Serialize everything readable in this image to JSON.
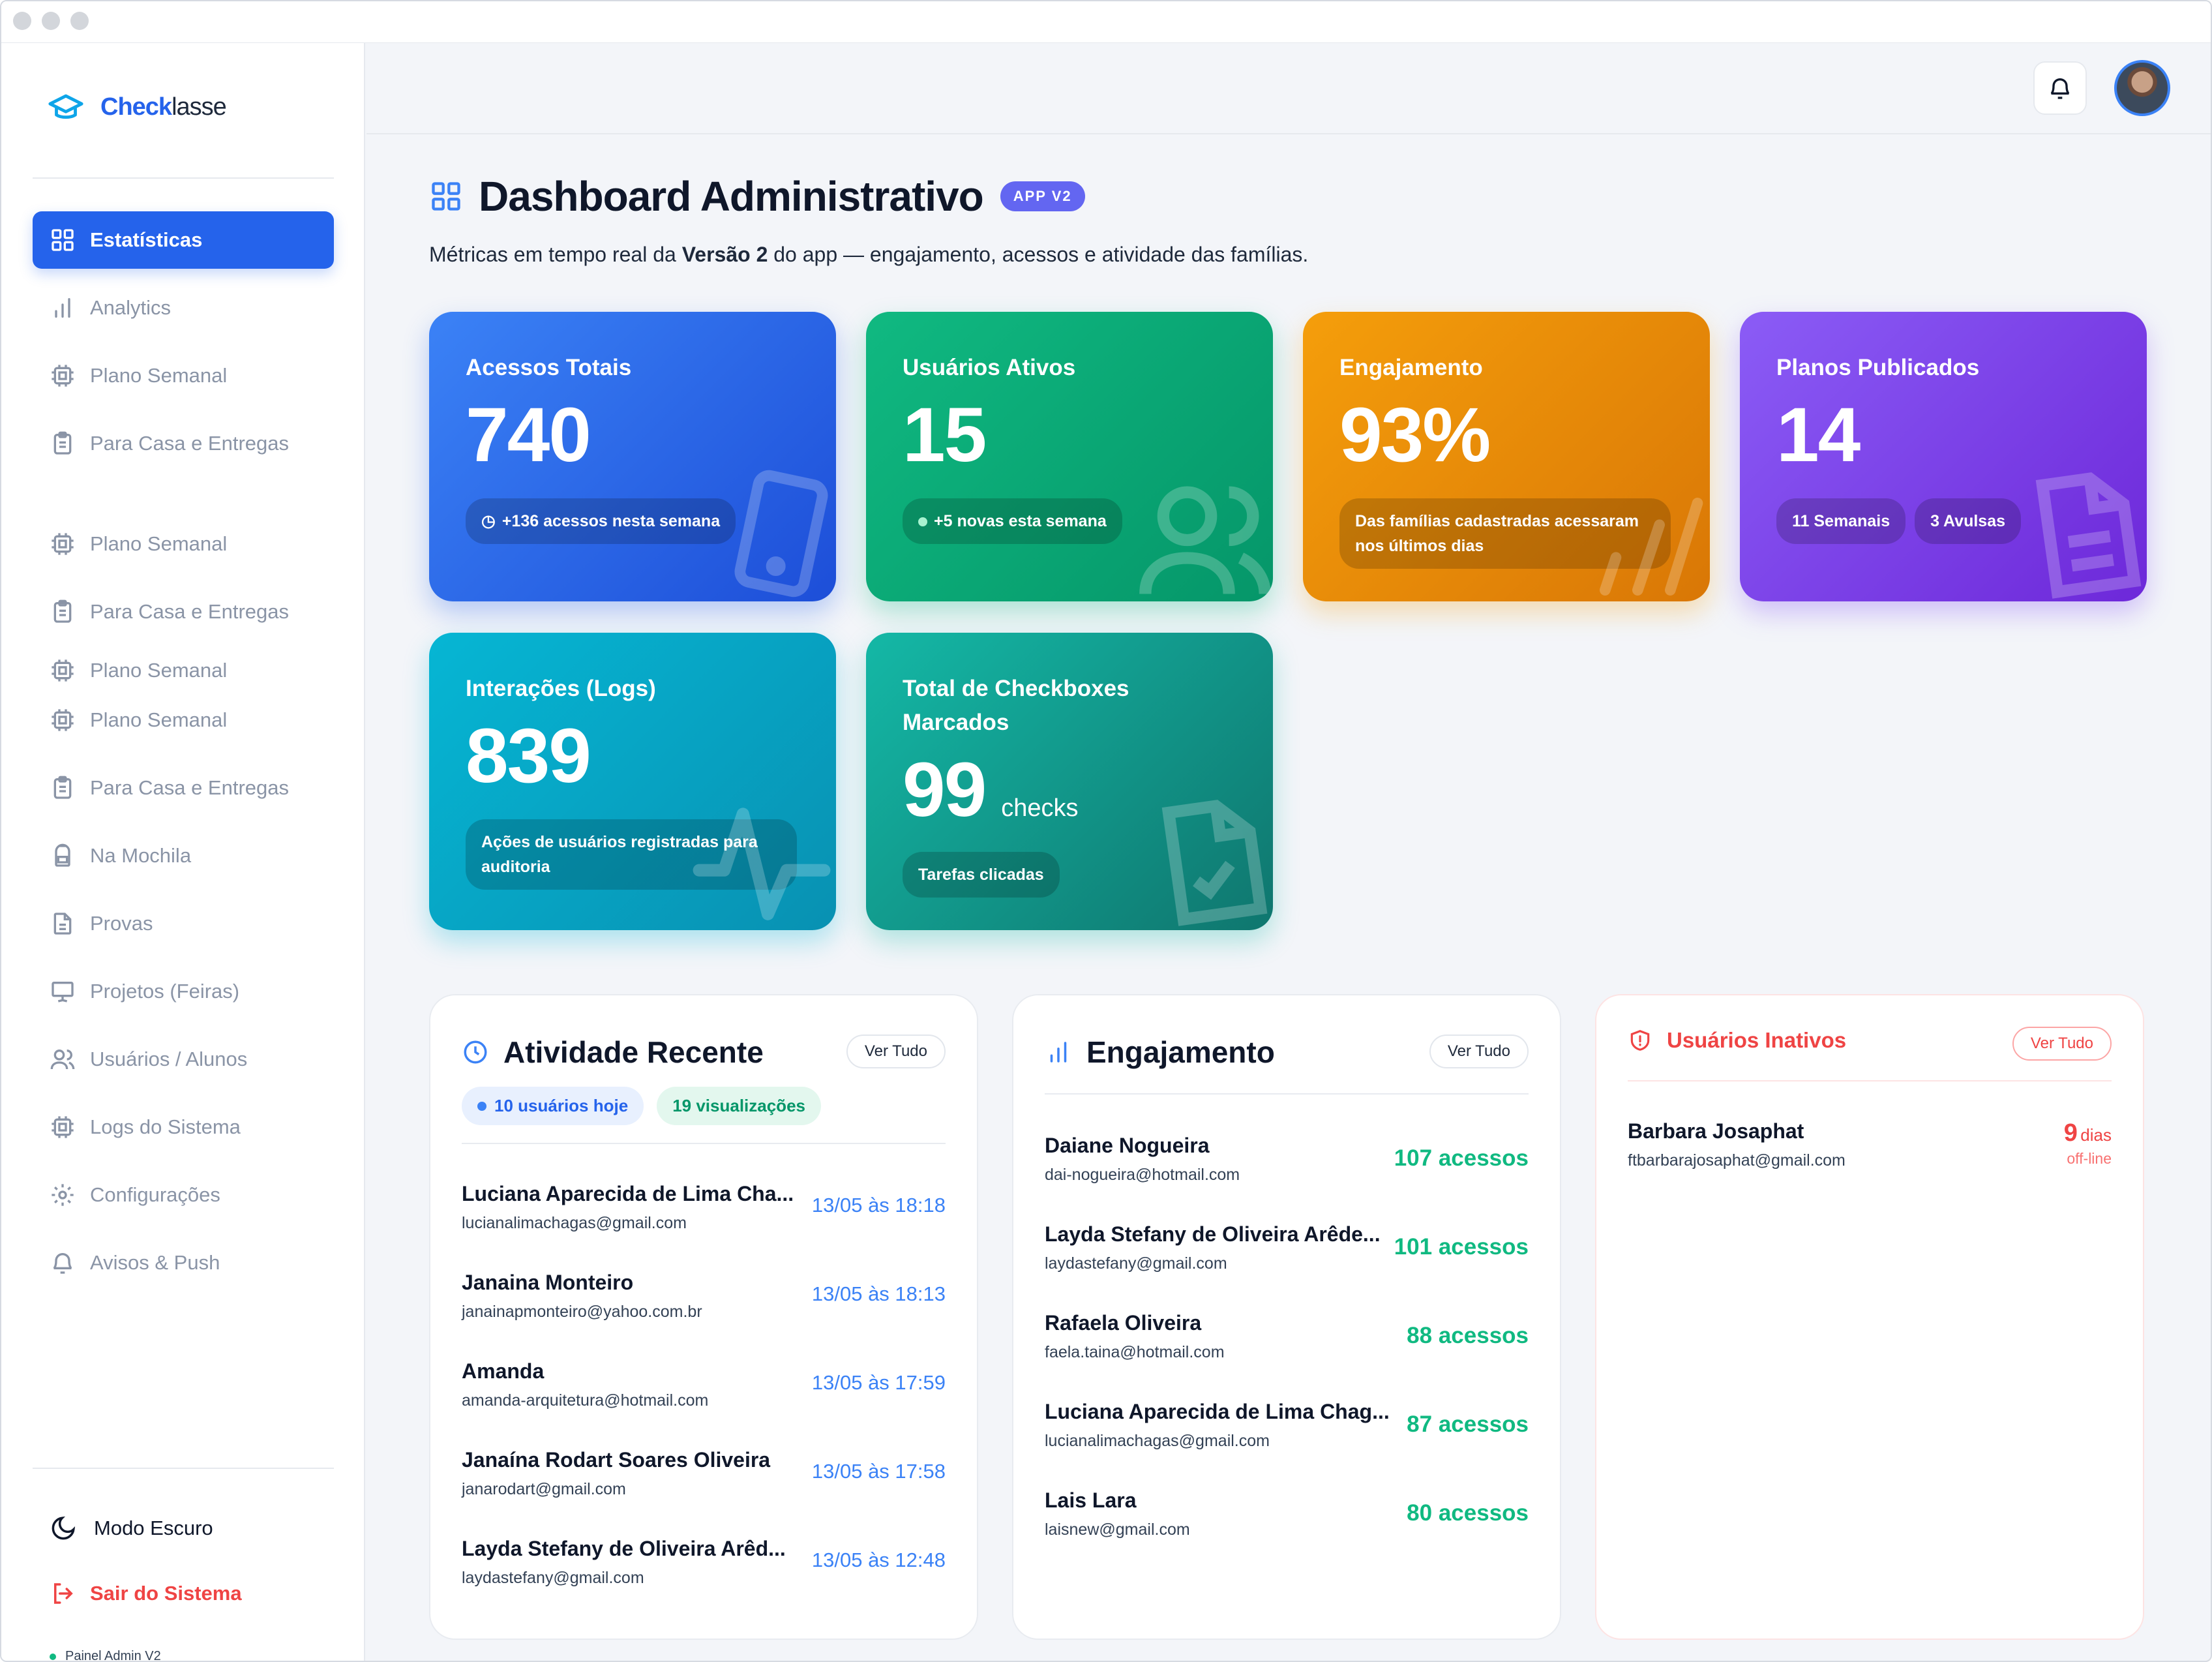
{
  "app": {
    "brand_bold": "Check",
    "brand_rest": "lasse"
  },
  "sidebar": {
    "items": [
      {
        "label": "Estatísticas",
        "icon": "grid-icon",
        "active": true
      },
      {
        "label": "Analytics",
        "icon": "bar-chart-icon"
      },
      {
        "label": "Plano Semanal",
        "icon": "chip-icon"
      },
      {
        "label": "Para Casa e Entregas",
        "icon": "clipboard-icon"
      },
      {
        "label": "Plano Semanal",
        "icon": "chip-icon"
      },
      {
        "label": "Para Casa e Entregas",
        "icon": "clipboard-icon"
      },
      {
        "label": "Plano Semanal",
        "icon": "chip-icon"
      },
      {
        "label": "Plano Semanal",
        "icon": "chip-icon"
      },
      {
        "label": "Para Casa e Entregas",
        "icon": "clipboard-icon"
      },
      {
        "label": "Na Mochila",
        "icon": "backpack-icon"
      },
      {
        "label": "Provas",
        "icon": "document-icon"
      },
      {
        "label": "Projetos (Feiras)",
        "icon": "presentation-icon"
      },
      {
        "label": "Usuários / Alunos",
        "icon": "users-icon"
      },
      {
        "label": "Logs do Sistema",
        "icon": "chip-icon"
      },
      {
        "label": "Configurações",
        "icon": "gear-icon"
      },
      {
        "label": "Avisos & Push",
        "icon": "bell-icon"
      }
    ],
    "dark_mode": "Modo Escuro",
    "logout": "Sair do Sistema",
    "footer": "Painel Admin V2"
  },
  "header": {
    "title": "Dashboard Administrativo",
    "badge": "APP V2",
    "subtitle_before": "Métricas em tempo real da ",
    "subtitle_bold": "Versão 2",
    "subtitle_after": " do app — engajamento, acessos e atividade das famílias."
  },
  "stats": {
    "acessos": {
      "label": "Acessos Totais",
      "value": "740",
      "note": "+136 acessos nesta semana"
    },
    "usuarios": {
      "label": "Usuários Ativos",
      "value": "15",
      "note": "+5 novas esta semana"
    },
    "engajamento": {
      "label": "Engajamento",
      "value": "93%",
      "note": "Das famílias cadastradas acessaram nos últimos dias"
    },
    "planos": {
      "label": "Planos Publicados",
      "value": "14",
      "note1": "11 Semanais",
      "note2": "3 Avulsas"
    },
    "interacoes": {
      "label": "Interações (Logs)",
      "value": "839",
      "note": "Ações de usuários registradas para auditoria"
    },
    "checkboxes": {
      "label": "Total de Checkboxes Marcados",
      "value": "99",
      "unit": "checks",
      "note": "Tarefas clicadas"
    }
  },
  "activity": {
    "title": "Atividade Recente",
    "view_all": "Ver Tudo",
    "chip_users": "10 usuários hoje",
    "chip_views": "19 visualizações",
    "rows": [
      {
        "name": "Luciana Aparecida de Lima Cha...",
        "email": "lucianalimachagas@gmail.com",
        "time": "13/05 às 18:18"
      },
      {
        "name": "Janaina Monteiro",
        "email": "janainapmonteiro@yahoo.com.br",
        "time": "13/05 às 18:13"
      },
      {
        "name": "Amanda",
        "email": "amanda-arquitetura@hotmail.com",
        "time": "13/05 às 17:59"
      },
      {
        "name": "Janaína Rodart Soares Oliveira",
        "email": "janarodart@gmail.com",
        "time": "13/05 às 17:58"
      },
      {
        "name": "Layda Stefany de Oliveira Arêd...",
        "email": "laydastefany@gmail.com",
        "time": "13/05 às 12:48"
      }
    ]
  },
  "engagement": {
    "title": "Engajamento",
    "view_all": "Ver Tudo",
    "rows": [
      {
        "name": "Daiane Nogueira",
        "email": "dai-nogueira@hotmail.com",
        "count": "107 acessos"
      },
      {
        "name": "Layda Stefany de Oliveira Arêde...",
        "email": "laydastefany@gmail.com",
        "count": "101 acessos"
      },
      {
        "name": "Rafaela Oliveira",
        "email": "faela.taina@hotmail.com",
        "count": "88 acessos"
      },
      {
        "name": "Luciana Aparecida de Lima Chag...",
        "email": "lucianalimachagas@gmail.com",
        "count": "87 acessos"
      },
      {
        "name": "Lais Lara",
        "email": "laisnew@gmail.com",
        "count": "80 acessos"
      }
    ]
  },
  "inactive": {
    "title": "Usuários Inativos",
    "view_all": "Ver Tudo",
    "rows": [
      {
        "name": "Barbara Josaphat",
        "email": "ftbarbarajosaphat@gmail.com",
        "days": "9",
        "days_unit": "dias",
        "status": "off-line"
      }
    ]
  },
  "colors": {
    "primary": "#2563eb",
    "green": "#10b981",
    "red": "#ef4444"
  }
}
